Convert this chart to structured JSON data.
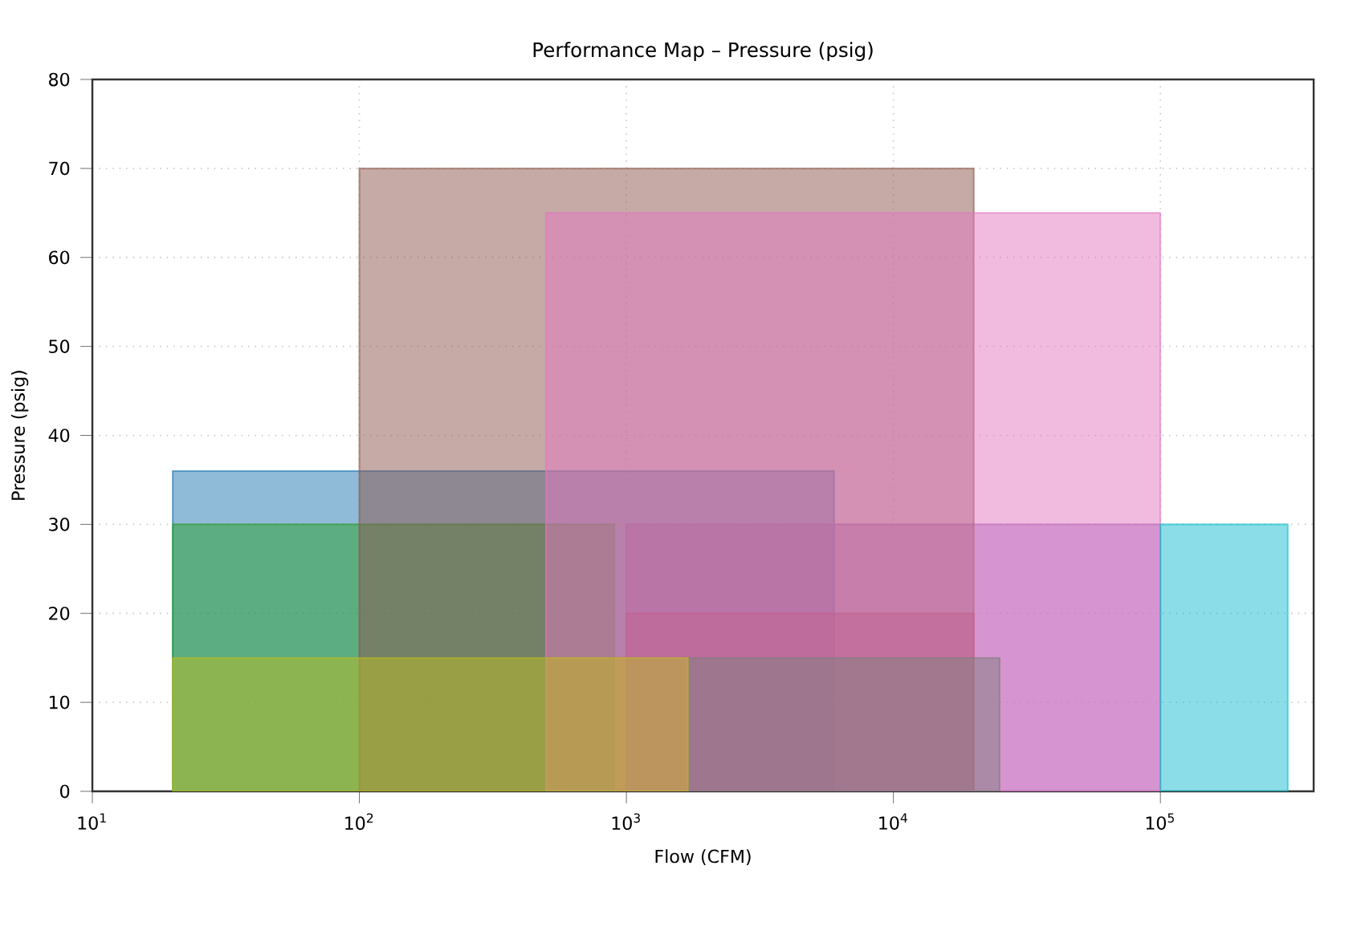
{
  "chart_data": {
    "type": "area",
    "title": "Performance Map – Pressure (psig)",
    "xlabel": "Flow (CFM)",
    "ylabel": "Pressure (psig)",
    "log": "x",
    "grid": true,
    "line_style": "solid",
    "xlim": [
      10,
      375000
    ],
    "ylim": [
      0,
      80
    ],
    "xticks": [
      {
        "value": 10,
        "label": "10$^{1}$"
      },
      {
        "value": 100,
        "label": "10$^{2}$"
      },
      {
        "value": 1000,
        "label": "10$^{3}$"
      },
      {
        "value": 10000,
        "label": "10$^{4}$"
      },
      {
        "value": 100000,
        "label": "10$^{5}$"
      }
    ],
    "yticks": [
      0,
      10,
      20,
      30,
      40,
      50,
      60,
      70,
      80
    ],
    "series": [
      {
        "color": "#1f77b4",
        "x": [
          20,
          6000
        ],
        "values": [
          36,
          36
        ]
      },
      {
        "color": "#ff7f0e",
        "x": [
          500,
          1000
        ],
        "values": [
          15,
          15
        ]
      },
      {
        "color": "#2ca02c",
        "x": [
          20,
          900
        ],
        "values": [
          30,
          30
        ]
      },
      {
        "color": "#d62728",
        "x": [
          1000,
          20000
        ],
        "values": [
          20,
          20
        ]
      },
      {
        "color": "#9467bd",
        "x": [
          1000,
          100000
        ],
        "values": [
          30,
          30
        ]
      },
      {
        "color": "#8c564b",
        "x": [
          100,
          20000
        ],
        "values": [
          70,
          70
        ]
      },
      {
        "color": "#e377c2",
        "x": [
          500,
          100000
        ],
        "values": [
          65,
          65
        ]
      },
      {
        "color": "#7f7f7f",
        "x": [
          1700,
          25000
        ],
        "values": [
          15,
          15
        ]
      },
      {
        "color": "#bcbd22",
        "x": [
          20,
          1700
        ],
        "values": [
          15,
          15
        ]
      },
      {
        "color": "#17becf",
        "x": [
          100000,
          300000
        ],
        "values": [
          30,
          30
        ]
      }
    ]
  }
}
